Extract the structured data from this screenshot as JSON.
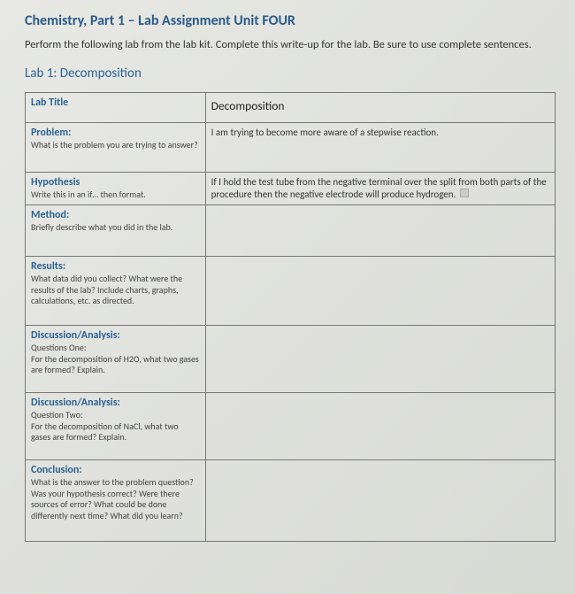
{
  "title": "Chemistry, Part 1 – Lab Assignment Unit FOUR",
  "instructions": "Perform the following lab from the lab kit. Complete this write-up for the lab. Be sure to use complete sentences.",
  "lab_name": "Lab 1: Decomposition",
  "colors": {
    "heading": "#2a5a8a",
    "row_header": "#2a6496",
    "text": "#333333",
    "border": "#777777",
    "background": "#e2e3de"
  },
  "rows": [
    {
      "left_header": "Lab Title",
      "left_sub": "",
      "right_value": "Decomposition",
      "is_title_row": true
    },
    {
      "left_header": "Problem:",
      "left_sub": "What is the problem you are trying to answer?",
      "right_value": "I am trying to become more aware of a stepwise reaction."
    },
    {
      "left_header": "Hypothesis",
      "left_sub": "Write this in an if… then format.",
      "right_value": "If I hold the test tube from the negative terminal over the split from both parts of the procedure then the negative electrode will produce hydrogen.",
      "has_input_marker": true
    },
    {
      "left_header": "Method:",
      "left_sub": "Briefly describe what you did in the lab.",
      "right_value": ""
    },
    {
      "left_header": "Results:",
      "left_sub": "What data did you collect? What were the results of the lab? Include charts, graphs, calculations, etc. as directed.",
      "right_value": ""
    },
    {
      "left_header": "Discussion/Analysis:",
      "left_sub": "Questions One:\nFor the decomposition of H2O, what two gases are formed? Explain.",
      "right_value": ""
    },
    {
      "left_header": "Discussion/Analysis:",
      "left_sub": "Question Two:\nFor the decomposition of NaCl, what two gases are formed? Explain.",
      "right_value": ""
    },
    {
      "left_header": "Conclusion:",
      "left_sub": "What is the answer to the problem question? Was your hypothesis correct? Were there sources of error? What could be done differently next time? What did you learn?",
      "right_value": ""
    }
  ]
}
